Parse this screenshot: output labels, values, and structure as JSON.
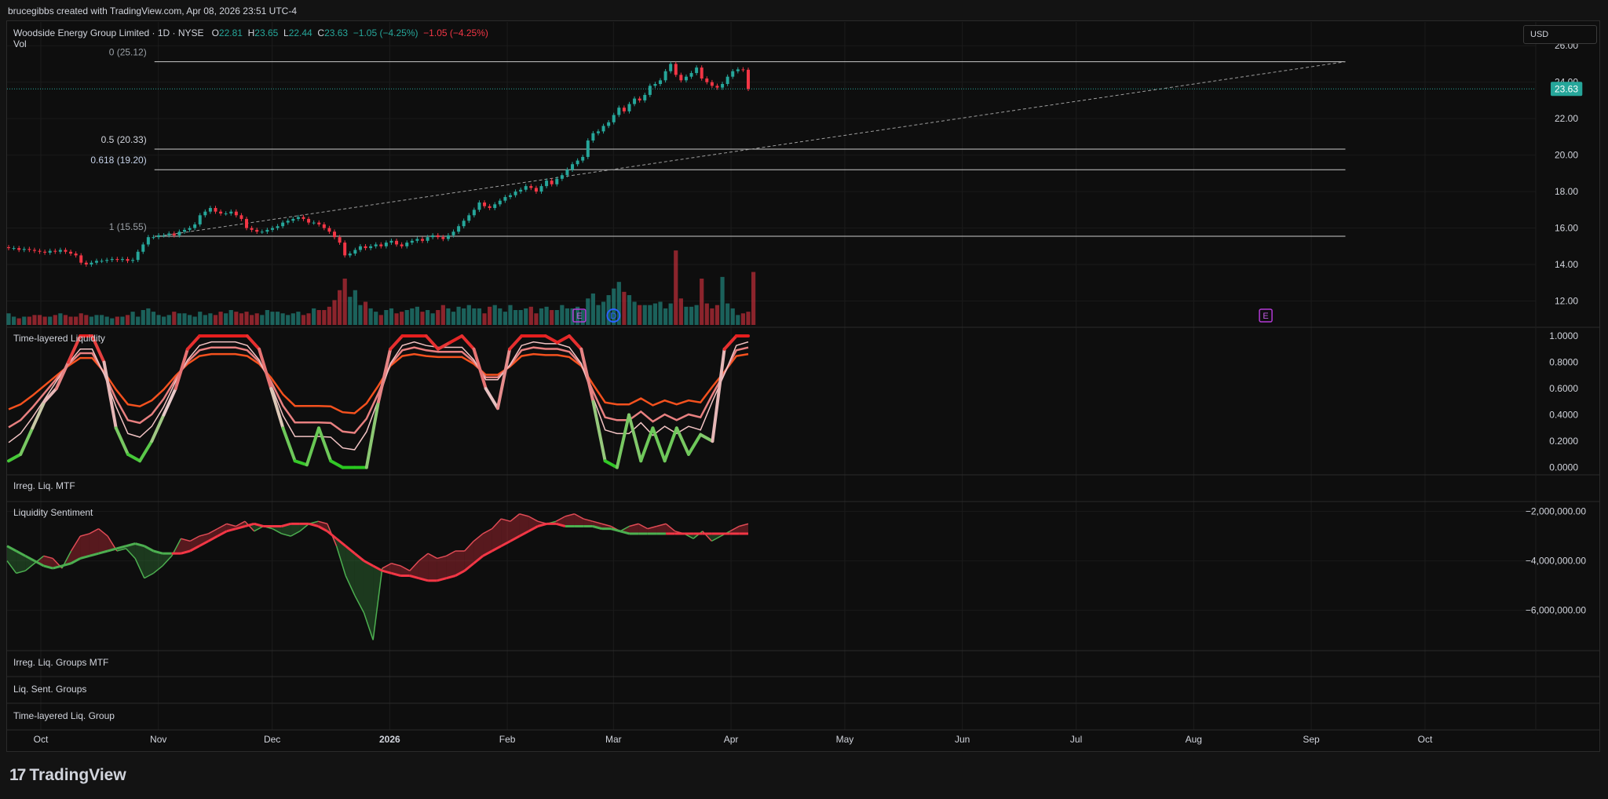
{
  "header": {
    "attribution": "brucegibbs created with TradingView.com, Apr 08, 2026 23:51 UTC-4"
  },
  "legend": {
    "symbol": "Woodside Energy Group Limited · 1D · NYSE",
    "o_label": "O",
    "o": "22.81",
    "h_label": "H",
    "h": "23.65",
    "l_label": "L",
    "l": "22.44",
    "c_label": "C",
    "c": "23.63",
    "change": "−1.05 (−4.25%)",
    "change2": "−1.05 (−4.25%)",
    "vol": "Vol"
  },
  "currency": "USD",
  "colors": {
    "up": "#26a69a",
    "down": "#f23645",
    "price_label": "#26a69a",
    "bull_line": "#4caf50",
    "bear_line": "#f23645"
  },
  "panes": {
    "p1": "Time-layered Liquidity",
    "p2": "Irreg. Liq. MTF",
    "p3": "Liquidity Sentiment",
    "p4": "Irreg. Liq. Groups MTF",
    "p5": "Liq. Sent. Groups",
    "p6": "Time-layered Liq. Group"
  },
  "logo": "TradingView",
  "chart_data": [
    {
      "type": "candlestick",
      "current_price": "23.63",
      "y_ticks": [
        "26.00",
        "24.00",
        "22.00",
        "20.00",
        "18.00",
        "16.00",
        "14.00",
        "12.00"
      ],
      "ylim": [
        10.6,
        27.3
      ],
      "x_ticks": [
        {
          "label": "Oct",
          "date": "2025-10-01"
        },
        {
          "label": "Nov",
          "date": "2025-11-01"
        },
        {
          "label": "Dec",
          "date": "2025-12-01"
        },
        {
          "label": "2026",
          "date": "2026-01-01"
        },
        {
          "label": "Feb",
          "date": "2026-02-01"
        },
        {
          "label": "Mar",
          "date": "2026-03-01"
        },
        {
          "label": "Apr",
          "date": "2026-04-01"
        },
        {
          "label": "May",
          "date": "2026-05-01"
        },
        {
          "label": "Jun",
          "date": "2026-06-01"
        },
        {
          "label": "Jul",
          "date": "2026-07-01"
        },
        {
          "label": "Aug",
          "date": "2026-08-01"
        },
        {
          "label": "Sep",
          "date": "2026-09-01"
        },
        {
          "label": "Oct",
          "date": "2026-10-01"
        }
      ],
      "fib_levels": [
        {
          "label": "0 (25.12)",
          "value": 25.12
        },
        {
          "label": "0.5 (20.33)",
          "value": 20.33
        },
        {
          "label": "0.618 (19.20)",
          "value": 19.2
        },
        {
          "label": "1 (15.55)",
          "value": 15.55
        }
      ],
      "trendline": {
        "from": [
          "2025-11-01",
          15.55
        ],
        "to": [
          "2026-09-10",
          25.12
        ]
      },
      "events": [
        {
          "label": "E",
          "date": "2026-02-20"
        },
        {
          "label": "D",
          "date": "2026-03-01"
        },
        {
          "label": "E",
          "date": "2026-08-20"
        }
      ],
      "closes": [
        14.9,
        14.9,
        14.8,
        14.85,
        14.8,
        14.75,
        14.7,
        14.65,
        14.75,
        14.7,
        14.8,
        14.7,
        14.6,
        14.5,
        14.1,
        14.0,
        14.1,
        14.2,
        14.2,
        14.25,
        14.3,
        14.25,
        14.3,
        14.2,
        14.25,
        14.7,
        15.1,
        15.5,
        15.5,
        15.6,
        15.6,
        15.7,
        15.6,
        15.8,
        15.9,
        16.0,
        16.2,
        16.7,
        16.9,
        17.1,
        16.9,
        16.8,
        16.8,
        16.9,
        16.7,
        16.5,
        16.0,
        15.9,
        15.8,
        15.8,
        15.9,
        16.0,
        16.1,
        16.3,
        16.4,
        16.5,
        16.6,
        16.5,
        16.3,
        16.3,
        16.2,
        16.0,
        15.8,
        15.5,
        15.2,
        14.5,
        14.6,
        14.8,
        15.0,
        14.9,
        15.0,
        15.1,
        15.0,
        15.2,
        15.3,
        15.1,
        15.0,
        15.2,
        15.3,
        15.4,
        15.3,
        15.5,
        15.6,
        15.5,
        15.4,
        15.6,
        15.8,
        16.1,
        16.4,
        16.7,
        17.0,
        17.4,
        17.2,
        17.1,
        17.3,
        17.5,
        17.7,
        17.8,
        18.0,
        18.1,
        18.3,
        18.2,
        18.0,
        18.3,
        18.6,
        18.4,
        18.7,
        18.9,
        19.2,
        19.5,
        19.7,
        19.9,
        20.8,
        21.2,
        21.3,
        21.6,
        21.8,
        22.2,
        22.6,
        22.4,
        22.8,
        23.1,
        23.0,
        23.3,
        23.8,
        23.9,
        24.1,
        24.6,
        25.0,
        24.4,
        24.1,
        24.3,
        24.5,
        24.8,
        24.2,
        24.0,
        23.8,
        23.7,
        23.9,
        24.3,
        24.6,
        24.7,
        24.68,
        23.63
      ],
      "volumes": [
        0.7,
        0.5,
        0.4,
        0.5,
        0.5,
        0.6,
        0.6,
        0.5,
        0.5,
        0.6,
        0.7,
        0.6,
        0.5,
        0.5,
        0.7,
        0.6,
        0.5,
        0.6,
        0.6,
        0.5,
        0.4,
        0.5,
        0.5,
        0.6,
        0.8,
        0.5,
        0.9,
        1.0,
        0.8,
        0.6,
        0.5,
        0.6,
        0.8,
        0.7,
        0.7,
        0.6,
        0.5,
        0.8,
        0.6,
        0.7,
        0.6,
        0.8,
        0.7,
        0.9,
        0.8,
        0.7,
        0.8,
        0.6,
        0.7,
        0.6,
        0.9,
        0.8,
        0.8,
        0.7,
        0.6,
        0.7,
        0.8,
        0.6,
        0.7,
        1.0,
        0.9,
        0.9,
        1.1,
        1.5,
        2.1,
        2.8,
        1.7,
        2.1,
        1.2,
        1.4,
        1.0,
        0.8,
        0.6,
        0.9,
        1.0,
        0.7,
        0.8,
        0.9,
        1.0,
        1.1,
        0.8,
        0.9,
        0.7,
        0.9,
        1.2,
        1.0,
        0.8,
        1.1,
        1.0,
        1.2,
        1.0,
        1.0,
        0.7,
        1.1,
        1.2,
        1.0,
        0.8,
        1.2,
        0.9,
        0.9,
        1.0,
        1.1,
        0.7,
        1.0,
        1.1,
        0.9,
        0.9,
        1.2,
        1.0,
        1.0,
        1.1,
        0.9,
        1.6,
        1.9,
        1.2,
        1.4,
        1.8,
        2.2,
        2.6,
        2.0,
        1.8,
        1.4,
        1.2,
        1.2,
        1.2,
        1.3,
        1.4,
        1.0,
        1.3,
        4.5,
        1.6,
        1.1,
        1.1,
        1.2,
        2.8,
        1.3,
        1.0,
        1.2,
        2.9,
        1.3,
        1.0,
        0.6,
        0.7,
        0.8,
        3.2
      ]
    },
    {
      "type": "line",
      "title": "Time-layered Liquidity",
      "y_ticks": [
        "1.0000",
        "0.8000",
        "0.6000",
        "0.4000",
        "0.2000",
        "0.0000"
      ],
      "ylim": [
        -0.05,
        1.06
      ]
    },
    {
      "type": "area",
      "title": "Liquidity Sentiment",
      "y_ticks": [
        "−2,000,000.00",
        "−4,000,000.00",
        "−6,000,000.00"
      ],
      "ylim": [
        -7600000,
        -1600000
      ],
      "series": [
        {
          "values": [
            -4.0,
            -4.5,
            -4.4,
            -4.1,
            -3.8,
            -3.9,
            -4.3,
            -3.6,
            -3.0,
            -2.9,
            -2.7,
            -3.0,
            -3.6,
            -3.5,
            -3.9,
            -4.7,
            -4.5,
            -4.2,
            -3.8,
            -3.1,
            -3.2,
            -3.0,
            -2.9,
            -2.7,
            -2.5,
            -2.6,
            -2.4,
            -2.8,
            -2.6,
            -2.7,
            -2.9,
            -3.0,
            -2.8,
            -2.5,
            -2.4,
            -2.5,
            -3.4,
            -4.6,
            -5.4,
            -6.1,
            -7.2,
            -4.3,
            -4.1,
            -4.2,
            -4.4,
            -4.0,
            -3.7,
            -3.9,
            -3.8,
            -3.6,
            -3.6,
            -3.2,
            -2.9,
            -2.7,
            -2.3,
            -2.4,
            -2.1,
            -2.2,
            -2.4,
            -2.5,
            -2.4,
            -2.2,
            -2.1,
            -2.3,
            -2.4,
            -2.5,
            -2.6,
            -2.8,
            -2.6,
            -2.5,
            -2.7,
            -2.6,
            -2.5,
            -2.8,
            -2.9,
            -3.1,
            -2.8,
            -3.2,
            -3.0,
            -2.8,
            -2.6,
            -2.5
          ]
        },
        {
          "values": [
            -3.4,
            -3.6,
            -3.8,
            -4.0,
            -4.2,
            -4.3,
            -4.2,
            -4.1,
            -3.9,
            -3.8,
            -3.7,
            -3.6,
            -3.5,
            -3.4,
            -3.3,
            -3.4,
            -3.6,
            -3.7,
            -3.7,
            -3.7,
            -3.6,
            -3.4,
            -3.2,
            -3.0,
            -2.8,
            -2.7,
            -2.6,
            -2.5,
            -2.6,
            -2.6,
            -2.6,
            -2.5,
            -2.5,
            -2.5,
            -2.6,
            -2.8,
            -3.1,
            -3.4,
            -3.7,
            -4.0,
            -4.2,
            -4.4,
            -4.5,
            -4.6,
            -4.6,
            -4.7,
            -4.8,
            -4.8,
            -4.7,
            -4.6,
            -4.4,
            -4.1,
            -3.8,
            -3.6,
            -3.4,
            -3.2,
            -3.0,
            -2.8,
            -2.6,
            -2.5,
            -2.5,
            -2.6,
            -2.6,
            -2.6,
            -2.6,
            -2.7,
            -2.7,
            -2.8,
            -2.9,
            -2.9,
            -2.9,
            -2.9,
            -2.9,
            -2.9,
            -2.9,
            -2.9,
            -2.9,
            -2.9,
            -2.9,
            -2.9,
            -2.9,
            -2.9
          ]
        }
      ]
    }
  ]
}
